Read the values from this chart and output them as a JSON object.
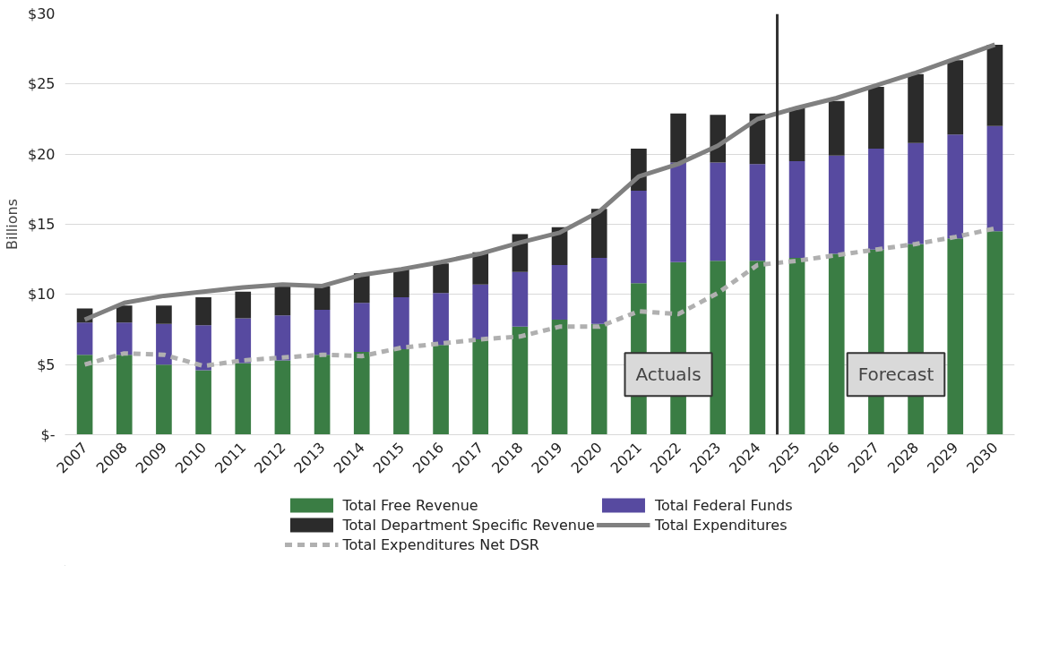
{
  "chart_data": {
    "type": "bar",
    "stacked": true,
    "ylabel": "Billions",
    "x": [
      2007,
      2008,
      2009,
      2010,
      2011,
      2012,
      2013,
      2014,
      2015,
      2016,
      2017,
      2018,
      2019,
      2020,
      2021,
      2022,
      2023,
      2024,
      2025,
      2026,
      2027,
      2028,
      2029,
      2030
    ],
    "xlim": [
      2006.5,
      2030.5
    ],
    "xticks": [
      2007,
      2008,
      2009,
      2010,
      2011,
      2012,
      2013,
      2014,
      2015,
      2016,
      2017,
      2018,
      2019,
      2020,
      2021,
      2022,
      2023,
      2024,
      2025,
      2026,
      2027,
      2028,
      2029,
      2030
    ],
    "ylim": [
      0,
      30
    ],
    "yticks": [
      {
        "value": 0,
        "label": "$-"
      },
      {
        "value": 5,
        "label": "$5"
      },
      {
        "value": 10,
        "label": "$10"
      },
      {
        "value": 15,
        "label": "$15"
      },
      {
        "value": 20,
        "label": "$20"
      },
      {
        "value": 25,
        "label": "$25"
      },
      {
        "value": 30,
        "label": "$30"
      }
    ],
    "series": [
      {
        "name": "Total Free Revenue",
        "color": "#3a7d44",
        "values": [
          5.7,
          5.7,
          5.0,
          4.6,
          5.1,
          5.3,
          5.7,
          5.9,
          6.1,
          6.4,
          6.8,
          7.7,
          8.2,
          7.9,
          10.8,
          12.3,
          12.4,
          12.4,
          12.6,
          12.9,
          13.2,
          13.6,
          14.0,
          14.5
        ]
      },
      {
        "name": "Total Federal Funds",
        "color": "#574aa0",
        "values": [
          2.3,
          2.3,
          2.9,
          3.2,
          3.2,
          3.2,
          3.2,
          3.5,
          3.7,
          3.7,
          3.9,
          3.9,
          3.9,
          4.7,
          6.6,
          7.1,
          7.0,
          6.9,
          6.9,
          7.0,
          7.2,
          7.2,
          7.4,
          7.5
        ]
      },
      {
        "name": "Total Department Specific Revenue",
        "color": "#2b2b2b",
        "values": [
          1.0,
          1.2,
          1.3,
          2.0,
          1.9,
          2.1,
          1.7,
          2.1,
          2.0,
          2.1,
          2.3,
          2.7,
          2.7,
          3.5,
          3.0,
          3.5,
          3.4,
          3.6,
          3.8,
          3.9,
          4.4,
          4.9,
          5.3,
          5.8
        ]
      },
      {
        "name": "Total Expenditures",
        "type": "line",
        "color": "#808080",
        "line_style": "solid",
        "values": [
          8.2,
          9.4,
          9.9,
          10.2,
          10.5,
          10.7,
          10.6,
          11.4,
          11.8,
          12.3,
          12.9,
          13.7,
          14.4,
          15.9,
          18.4,
          19.3,
          20.6,
          22.5,
          23.3,
          24.0,
          24.9,
          25.8,
          26.8,
          27.8
        ]
      },
      {
        "name": "Total Expenditures Net DSR",
        "type": "line",
        "color": "#b0b0b0",
        "line_style": "dashed",
        "values": [
          5.0,
          5.8,
          5.7,
          4.9,
          5.3,
          5.5,
          5.7,
          5.6,
          6.2,
          6.5,
          6.8,
          7.0,
          7.7,
          7.7,
          8.8,
          8.6,
          10.1,
          12.1,
          12.4,
          12.8,
          13.2,
          13.6,
          14.1,
          14.7
        ]
      }
    ],
    "ref_lines": [
      {
        "axis": "x",
        "value": 2024.5,
        "color": "#333333"
      }
    ],
    "annotations": [
      "Actuals",
      "Forecast"
    ],
    "grid": "y",
    "legend": "bottom"
  }
}
